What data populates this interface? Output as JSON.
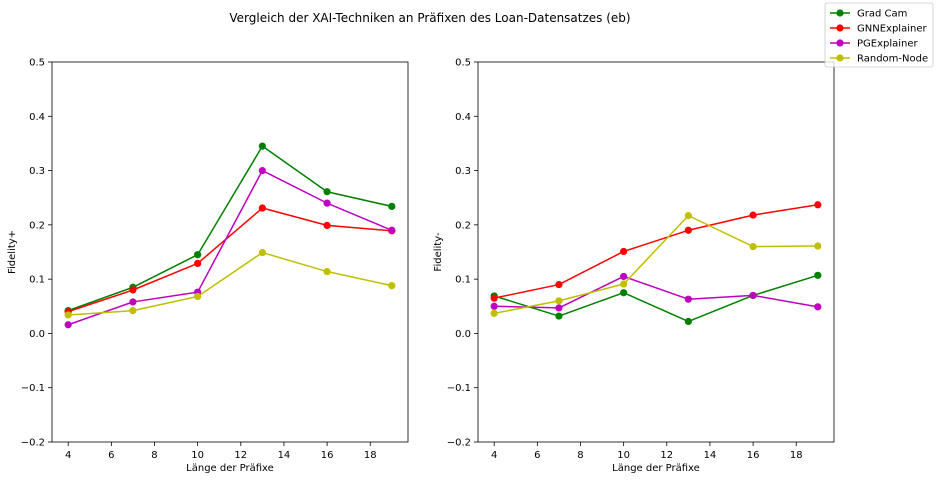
{
  "chart_data": {
    "suptitle": "Vergleich der XAI-Techniken an Präfixen des Loan-Datensatzes (eb)",
    "legend": {
      "placement": "top-right",
      "entries": [
        {
          "name": "Grad Cam",
          "color": "#008000"
        },
        {
          "name": "GNNExplainer",
          "color": "#ff0000"
        },
        {
          "name": "PGExplainer",
          "color": "#bf00bf"
        },
        {
          "name": "Random-Node",
          "color": "#bfbf00"
        }
      ]
    },
    "charts": [
      {
        "type": "line",
        "xlabel": "Länge der Präfixe",
        "ylabel": "Fidelity+",
        "xlim": [
          3.25,
          19.75
        ],
        "ylim": [
          -0.2,
          0.5
        ],
        "xticks": [
          4,
          6,
          8,
          10,
          12,
          14,
          16,
          18
        ],
        "yticks": [
          -0.2,
          -0.1,
          0.0,
          0.1,
          0.2,
          0.3,
          0.4,
          0.5
        ],
        "ytick_labels": [
          "−0.2",
          "−0.1",
          "0.0",
          "0.1",
          "0.2",
          "0.3",
          "0.4",
          "0.5"
        ],
        "x": [
          4,
          7,
          10,
          13,
          16,
          19
        ],
        "series": [
          {
            "name": "Grad Cam",
            "color": "#008000",
            "values": [
              0.042,
              0.085,
              0.145,
              0.345,
              0.261,
              0.234
            ]
          },
          {
            "name": "GNNExplainer",
            "color": "#ff0000",
            "values": [
              0.04,
              0.08,
              0.129,
              0.231,
              0.199,
              0.189
            ]
          },
          {
            "name": "PGExplainer",
            "color": "#bf00bf",
            "values": [
              0.016,
              0.058,
              0.076,
              0.3,
              0.24,
              0.19
            ]
          },
          {
            "name": "Random-Node",
            "color": "#bfbf00",
            "values": [
              0.034,
              0.042,
              0.068,
              0.149,
              0.114,
              0.088
            ]
          }
        ]
      },
      {
        "type": "line",
        "xlabel": "Länge der Präfixe",
        "ylabel": "Fidelity-",
        "xlim": [
          3.25,
          19.75
        ],
        "ylim": [
          -0.2,
          0.5
        ],
        "xticks": [
          4,
          6,
          8,
          10,
          12,
          14,
          16,
          18
        ],
        "yticks": [
          -0.2,
          -0.1,
          0.0,
          0.1,
          0.2,
          0.3,
          0.4,
          0.5
        ],
        "ytick_labels": [
          "−0.2",
          "−0.1",
          "0.0",
          "0.1",
          "0.2",
          "0.3",
          "0.4",
          "0.5"
        ],
        "x": [
          4,
          7,
          10,
          13,
          16,
          19
        ],
        "series": [
          {
            "name": "Grad Cam",
            "color": "#008000",
            "values": [
              0.069,
              0.032,
              0.075,
              0.022,
              0.07,
              0.107
            ]
          },
          {
            "name": "GNNExplainer",
            "color": "#ff0000",
            "values": [
              0.065,
              0.09,
              0.151,
              0.19,
              0.218,
              0.237
            ]
          },
          {
            "name": "PGExplainer",
            "color": "#bf00bf",
            "values": [
              0.05,
              0.047,
              0.105,
              0.063,
              0.07,
              0.049
            ]
          },
          {
            "name": "Random-Node",
            "color": "#bfbf00",
            "values": [
              0.037,
              0.06,
              0.091,
              0.217,
              0.16,
              0.161
            ]
          }
        ]
      }
    ]
  }
}
